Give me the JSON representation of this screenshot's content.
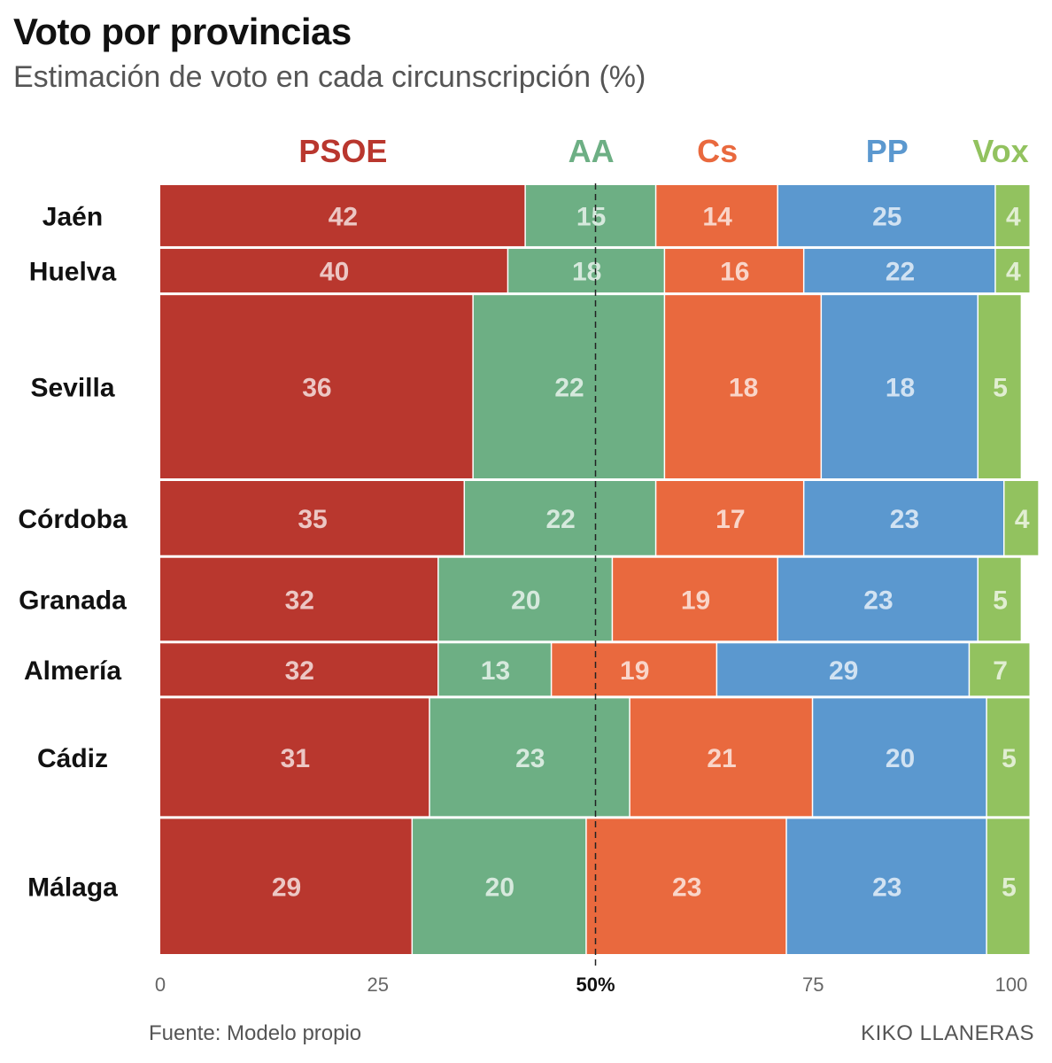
{
  "title": "Voto por provincias",
  "subtitle": "Estimación de voto en cada circunscripción (%)",
  "source": "Fuente: Modelo propio",
  "author": "KIKO LLANERAS",
  "chart_data": {
    "type": "bar",
    "stacked": true,
    "orientation": "horizontal",
    "variable_width": true,
    "xlim": [
      0,
      100
    ],
    "xticks": [
      "0",
      "25",
      "50%",
      "75",
      "100"
    ],
    "reference_line": 50,
    "categories": [
      "Jaén",
      "Huelva",
      "Sevilla",
      "Córdoba",
      "Granada",
      "Almería",
      "Cádiz",
      "Málaga"
    ],
    "row_weights": [
      0.7,
      0.5,
      2.1,
      0.85,
      0.95,
      0.6,
      1.35,
      1.55
    ],
    "series": [
      {
        "name": "PSOE",
        "color": "#b9372e",
        "values": [
          42,
          40,
          36,
          35,
          32,
          32,
          31,
          29
        ]
      },
      {
        "name": "AA",
        "color": "#6daf84",
        "values": [
          15,
          18,
          22,
          22,
          20,
          13,
          23,
          20
        ]
      },
      {
        "name": "Cs",
        "color": "#e9693e",
        "values": [
          14,
          16,
          18,
          17,
          19,
          19,
          21,
          23
        ]
      },
      {
        "name": "PP",
        "color": "#5b98cf",
        "values": [
          25,
          22,
          18,
          23,
          23,
          29,
          20,
          23
        ]
      },
      {
        "name": "Vox",
        "color": "#92c25f",
        "values": [
          4,
          4,
          5,
          4,
          5,
          7,
          5,
          5
        ]
      }
    ]
  }
}
